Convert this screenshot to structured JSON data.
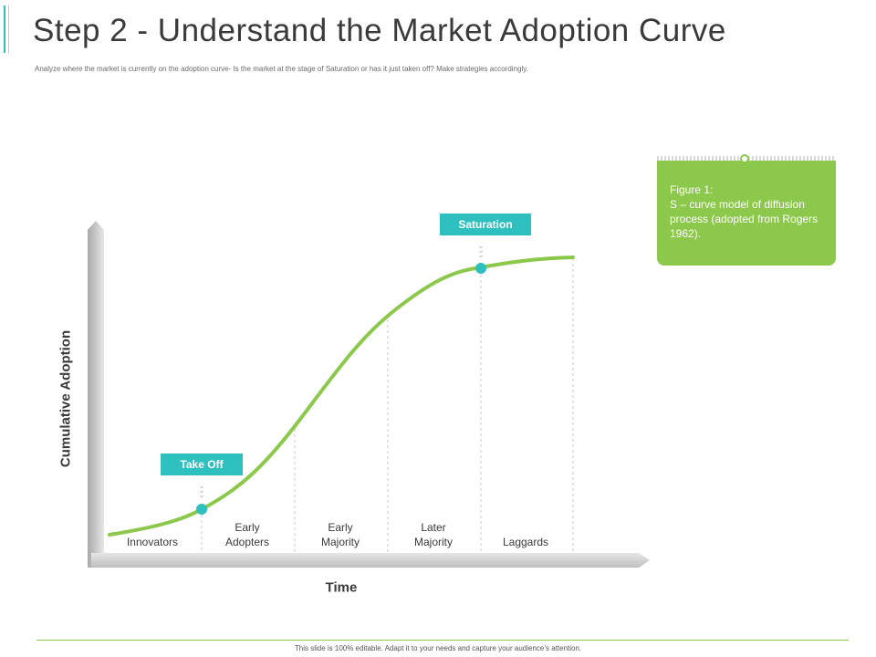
{
  "slide": {
    "title": "Step 2 - Understand the Market Adoption Curve",
    "subtitle": "Analyze where the market is currently on the adoption curve- Is the market at the stage of Saturation or has it just taken off? Make strategies accordingly.",
    "footer": "This slide is 100% editable. Adapt it to your needs and capture your audience’s attention."
  },
  "diagram": {
    "y_axis_label": "Cumulative Adoption",
    "x_axis_label": "Time",
    "segments": [
      {
        "line1": "Innovators",
        "line2": ""
      },
      {
        "line1": "Early",
        "line2": "Adopters"
      },
      {
        "line1": "Early",
        "line2": "Majority"
      },
      {
        "line1": "Later",
        "line2": "Majority"
      },
      {
        "line1": "Laggards",
        "line2": ""
      }
    ],
    "markers": {
      "take_off": "Take Off",
      "saturation": "Saturation"
    },
    "note": {
      "line1": "Figure 1:",
      "line2": "S – curve  model of diffusion process (adopted from Rogers 1962)."
    },
    "colors": {
      "curve": "#8cc84b",
      "marker": "#2ebfbf",
      "note_background": "#8cc84b"
    }
  }
}
